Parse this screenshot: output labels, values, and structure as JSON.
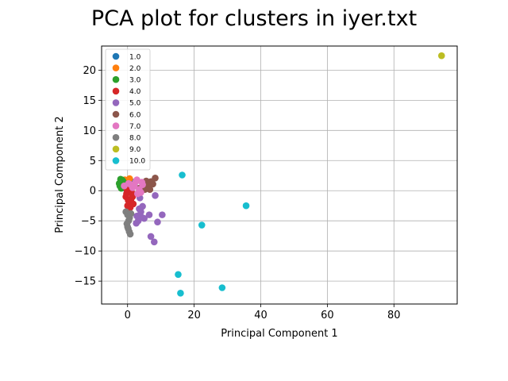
{
  "chart_data": {
    "type": "scatter",
    "title": "PCA plot for clusters in iyer.txt",
    "xlabel": "Principal Component 1",
    "ylabel": "Principal Component 2",
    "xlim": [
      -7.8,
      99.0
    ],
    "ylim": [
      -18.8,
      24.0
    ],
    "xticks": [
      0,
      20,
      40,
      60,
      80
    ],
    "yticks": [
      -15,
      -10,
      -5,
      0,
      5,
      10,
      15,
      20
    ],
    "grid": true,
    "legend_position": "top-left",
    "series": [
      {
        "name": "1.0",
        "color": "#1f77b4",
        "points": [
          [
            -1.0,
            1.2
          ],
          [
            0.5,
            0.8
          ],
          [
            1.2,
            1.5
          ],
          [
            -0.5,
            0.3
          ],
          [
            0.8,
            0.0
          ],
          [
            2.0,
            1.0
          ]
        ]
      },
      {
        "name": "2.0",
        "color": "#ff7f0e",
        "points": [
          [
            -0.8,
            1.8
          ],
          [
            0.2,
            1.4
          ],
          [
            1.0,
            0.6
          ],
          [
            -1.5,
            1.1
          ],
          [
            0.6,
            2.0
          ]
        ]
      },
      {
        "name": "3.0",
        "color": "#2ca02c",
        "points": [
          [
            -2.0,
            1.5
          ],
          [
            -2.3,
            0.8
          ],
          [
            -1.7,
            1.8
          ],
          [
            -2.5,
            1.2
          ],
          [
            -1.2,
            1.0
          ],
          [
            -1.9,
            0.4
          ],
          [
            -1.4,
            1.6
          ],
          [
            -0.8,
            1.2
          ],
          [
            -2.1,
            1.9
          ],
          [
            -1.6,
            0.7
          ]
        ]
      },
      {
        "name": "4.0",
        "color": "#d62728",
        "points": [
          [
            -0.5,
            -1.0
          ],
          [
            0.5,
            -2.0
          ],
          [
            1.0,
            -1.5
          ],
          [
            0.0,
            -2.5
          ],
          [
            1.5,
            -1.0
          ],
          [
            -0.3,
            -0.5
          ],
          [
            0.8,
            -2.8
          ],
          [
            1.7,
            -2.2
          ],
          [
            0.2,
            -1.6
          ],
          [
            1.2,
            -0.3
          ],
          [
            -0.2,
            0.2
          ],
          [
            0.9,
            0.4
          ]
        ]
      },
      {
        "name": "5.0",
        "color": "#9467bd",
        "points": [
          [
            8.3,
            -0.8
          ],
          [
            10.4,
            -4.0
          ],
          [
            6.5,
            -4.0
          ],
          [
            9.0,
            -5.2
          ],
          [
            7.0,
            -7.6
          ],
          [
            8.0,
            -8.5
          ],
          [
            3.2,
            -5.0
          ],
          [
            4.0,
            -3.5
          ],
          [
            4.5,
            -2.6
          ],
          [
            2.8,
            -4.2
          ],
          [
            3.5,
            -3.0
          ],
          [
            5.0,
            -4.6
          ],
          [
            3.7,
            -1.2
          ],
          [
            2.6,
            -5.4
          ],
          [
            4.2,
            -4.4
          ]
        ]
      },
      {
        "name": "6.0",
        "color": "#8c564b",
        "points": [
          [
            8.3,
            2.1
          ],
          [
            7.0,
            1.5
          ],
          [
            6.2,
            0.8
          ],
          [
            5.2,
            0.2
          ],
          [
            4.6,
            1.0
          ],
          [
            7.6,
            1.1
          ],
          [
            6.7,
            0.2
          ],
          [
            5.6,
            1.6
          ],
          [
            3.5,
            0.4
          ]
        ]
      },
      {
        "name": "7.0",
        "color": "#e377c2",
        "points": [
          [
            -1.0,
            0.8
          ],
          [
            0.3,
            1.2
          ],
          [
            1.5,
            0.5
          ],
          [
            2.5,
            1.5
          ],
          [
            3.5,
            0.2
          ],
          [
            4.5,
            1.0
          ],
          [
            3.0,
            -0.5
          ],
          [
            2.0,
            0.8
          ],
          [
            4.0,
            -0.3
          ],
          [
            1.0,
            1.0
          ],
          [
            2.8,
            1.8
          ],
          [
            4.3,
            1.4
          ]
        ]
      },
      {
        "name": "8.0",
        "color": "#7f7f7f",
        "points": [
          [
            -0.5,
            -3.5
          ],
          [
            0.0,
            -4.0
          ],
          [
            0.3,
            -5.0
          ],
          [
            0.0,
            -6.0
          ],
          [
            0.5,
            -6.8
          ],
          [
            0.8,
            -7.2
          ],
          [
            -0.2,
            -5.5
          ],
          [
            0.6,
            -4.5
          ],
          [
            1.0,
            -3.8
          ],
          [
            0.2,
            -6.3
          ]
        ]
      },
      {
        "name": "9.0",
        "color": "#bcbd22",
        "points": [
          [
            94.3,
            22.4
          ]
        ]
      },
      {
        "name": "10.0",
        "color": "#17becf",
        "points": [
          [
            16.4,
            2.6
          ],
          [
            35.6,
            -2.5
          ],
          [
            22.3,
            -5.7
          ],
          [
            15.2,
            -13.9
          ],
          [
            15.9,
            -17.0
          ],
          [
            28.4,
            -16.1
          ]
        ]
      }
    ]
  }
}
